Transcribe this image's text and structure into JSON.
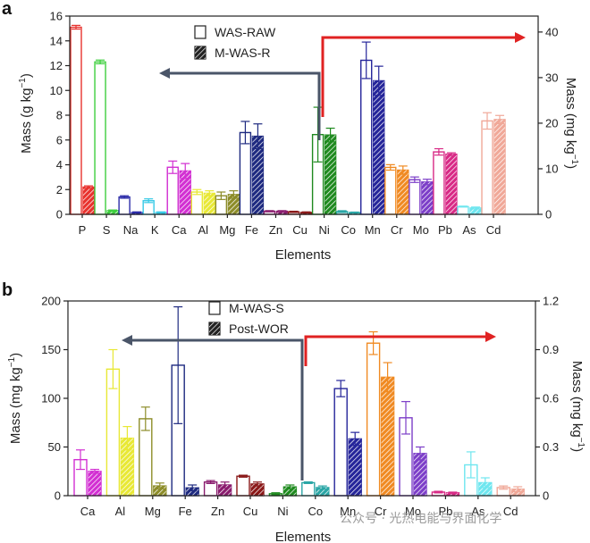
{
  "chart_data": [
    {
      "type": "bar",
      "panel_label": "a",
      "xlabel": "Elements",
      "ylabel_left": "Mass (g kg",
      "ylabel_left_sup": "−1",
      "ylabel_right": "Mass (mg kg",
      "ylabel_right_sup": "−1",
      "ylim_left": [
        0,
        16
      ],
      "ylim_right": [
        0,
        43.5
      ],
      "yticks_left": [
        "0",
        "2",
        "4",
        "6",
        "8",
        "10",
        "12",
        "14",
        "16"
      ],
      "yticks_right": [
        "0",
        "10",
        "20",
        "30",
        "40"
      ],
      "split_after": "Cu",
      "legend": [
        "WAS-RAW",
        "M-WAS-R"
      ],
      "categories": [
        "P",
        "S",
        "Na",
        "K",
        "Ca",
        "Al",
        "Mg",
        "Fe",
        "Zn",
        "Cu",
        "Ni",
        "Co",
        "Mn",
        "Cr",
        "Mo",
        "Pb",
        "As",
        "Cd"
      ],
      "axis": [
        "left",
        "left",
        "left",
        "left",
        "left",
        "left",
        "left",
        "left",
        "left",
        "left",
        "right",
        "right",
        "right",
        "right",
        "right",
        "right",
        "right",
        "right"
      ],
      "colors": [
        "#e8322e",
        "#3ecf3e",
        "#2b2ba8",
        "#36c9e6",
        "#d22fd2",
        "#e8e835",
        "#8c8c28",
        "#1e2a80",
        "#8a1c6e",
        "#8a1818",
        "#1f8a1f",
        "#2aa6a6",
        "#25259a",
        "#f08a22",
        "#7c3ec8",
        "#d82a86",
        "#6ee6ef",
        "#f0a898"
      ],
      "series": [
        {
          "name": "WAS-RAW",
          "values": [
            15.1,
            12.3,
            1.4,
            1.1,
            3.8,
            1.8,
            1.5,
            6.6,
            0.25,
            0.2,
            17.5,
            0.6,
            33.8,
            10.3,
            7.6,
            13.7,
            1.7,
            20.5
          ],
          "errors": [
            0.15,
            0.15,
            0.1,
            0.15,
            0.5,
            0.2,
            0.3,
            0.9,
            0.05,
            0.05,
            6.0,
            0.2,
            4.0,
            0.6,
            0.6,
            0.7,
            0.1,
            1.8
          ]
        },
        {
          "name": "M-WAS-R",
          "values": [
            2.2,
            0.3,
            0.15,
            0.15,
            3.5,
            1.7,
            1.6,
            6.3,
            0.25,
            0.15,
            17.4,
            0.4,
            29.3,
            9.7,
            7.1,
            13.2,
            1.4,
            20.8
          ],
          "errors": [
            0.1,
            0.05,
            0.05,
            0.05,
            0.6,
            0.2,
            0.3,
            1.0,
            0.05,
            0.05,
            1.5,
            0.1,
            3.2,
            0.9,
            0.6,
            0.3,
            0.2,
            0.9
          ]
        }
      ]
    },
    {
      "type": "bar",
      "panel_label": "b",
      "xlabel": "Elements",
      "ylabel_left": "Mass (mg kg",
      "ylabel_left_sup": "−1",
      "ylabel_right": "Mass (mg kg",
      "ylabel_right_sup": "−1",
      "ylim_left": [
        0,
        200
      ],
      "ylim_right": [
        0,
        1.2
      ],
      "yticks_left": [
        "0",
        "50",
        "100",
        "150",
        "200"
      ],
      "yticks_right": [
        "0",
        "0.3",
        "0.6",
        "0.9",
        "1.2"
      ],
      "split_after": "Ni",
      "legend": [
        "M-WAS-S",
        "Post-WOR"
      ],
      "categories": [
        "Ca",
        "Al",
        "Mg",
        "Fe",
        "Zn",
        "Cu",
        "Ni",
        "Co",
        "Mn",
        "Cr",
        "Mo",
        "Pb",
        "As",
        "Cd"
      ],
      "axis": [
        "left",
        "left",
        "left",
        "left",
        "left",
        "left",
        "left",
        "right",
        "right",
        "right",
        "right",
        "right",
        "right",
        "right"
      ],
      "colors": [
        "#d22fd2",
        "#e8e835",
        "#8c8c28",
        "#1e2a80",
        "#8a1c6e",
        "#8a1818",
        "#1f8a1f",
        "#2aa6a6",
        "#25259a",
        "#f08a22",
        "#7c3ec8",
        "#d82a86",
        "#6ee6ef",
        "#f0a898"
      ],
      "series": [
        {
          "name": "M-WAS-S",
          "values": [
            37,
            130,
            79,
            134,
            14,
            20,
            2,
            0.08,
            0.66,
            0.94,
            0.48,
            0.022,
            0.19,
            0.05
          ],
          "errors": [
            10,
            20,
            12,
            60,
            1.5,
            1,
            1,
            0.005,
            0.05,
            0.07,
            0.1,
            0.005,
            0.08,
            0.01
          ]
        },
        {
          "name": "Post-WOR",
          "values": [
            25,
            59,
            10,
            8,
            11,
            12,
            9,
            0.05,
            0.35,
            0.73,
            0.26,
            0.018,
            0.08,
            0.04
          ],
          "errors": [
            2,
            12,
            3,
            3,
            3,
            2,
            2,
            0.01,
            0.04,
            0.09,
            0.04,
            0.004,
            0.03,
            0.015
          ]
        }
      ]
    }
  ],
  "watermark": "公众号 · 光热电能与界面化学"
}
